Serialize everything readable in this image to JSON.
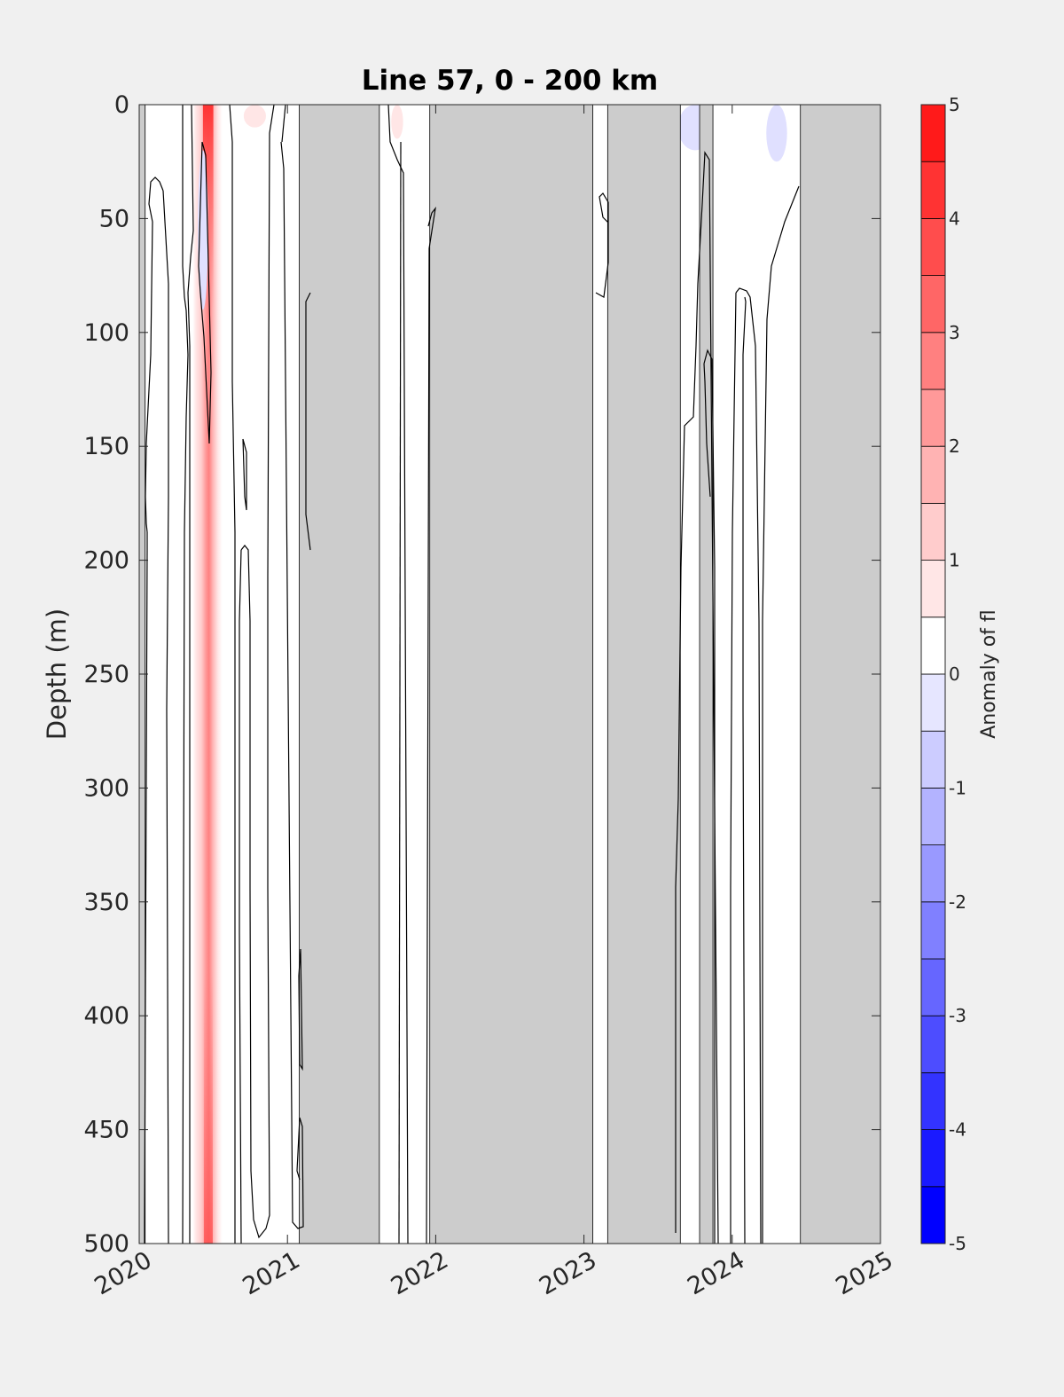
{
  "chart_data": {
    "type": "heatmap",
    "title": "Line 57, 0 - 200 km",
    "xlabel": "",
    "ylabel": "Depth (m)",
    "xlim": [
      2020,
      2025
    ],
    "ylim": [
      0,
      500
    ],
    "y_reversed": true,
    "x_ticks": [
      "2020",
      "2021",
      "2022",
      "2023",
      "2024",
      "2025"
    ],
    "y_ticks": [
      "0",
      "50",
      "100",
      "150",
      "200",
      "250",
      "300",
      "350",
      "400",
      "450",
      "500"
    ],
    "no_data_periods": [
      [
        2020.0,
        2020.04
      ],
      [
        2021.08,
        2021.62
      ],
      [
        2021.96,
        2023.06
      ],
      [
        2023.16,
        2023.65
      ],
      [
        2023.78,
        2023.87
      ],
      [
        2024.46,
        2025.0
      ]
    ],
    "no_data_color": "#cccccc",
    "anomaly_features": [
      {
        "x_start": 2020.36,
        "x_end": 2020.56,
        "depth_start": 0,
        "depth_end": 500,
        "peak_x": 2020.5,
        "peak_value": 4.0
      },
      {
        "x_start": 2020.7,
        "x_end": 2020.85,
        "depth_start": 0,
        "depth_end": 10,
        "peak_x": 2020.78,
        "peak_value": 0.5
      },
      {
        "x_start": 2021.7,
        "x_end": 2021.78,
        "depth_start": 0,
        "depth_end": 15,
        "peak_x": 2021.74,
        "peak_value": 0.5
      },
      {
        "x_start": 2024.23,
        "x_end": 2024.37,
        "depth_start": 0,
        "depth_end": 25,
        "peak_x": 2024.3,
        "peak_value": -0.7
      },
      {
        "x_start": 2023.65,
        "x_end": 2023.88,
        "depth_start": 0,
        "depth_end": 20,
        "peak_x": 2023.75,
        "peak_value": -0.6
      },
      {
        "x_start": 2020.39,
        "x_end": 2020.46,
        "depth_start": 20,
        "depth_end": 90,
        "peak_x": 2020.43,
        "peak_value": -0.6
      }
    ],
    "colorbar": {
      "label": "Anomaly of fl",
      "min": -5,
      "max": 5,
      "ticks": [
        "-5",
        "-4",
        "-3",
        "-2",
        "-1",
        "0",
        "1",
        "2",
        "3",
        "4",
        "5"
      ],
      "levels": [
        -5,
        -4.5,
        -4,
        -3.5,
        -3,
        -2.5,
        -2,
        -1.5,
        -1,
        -0.5,
        0,
        0.5,
        1,
        1.5,
        2,
        2.5,
        3,
        3.5,
        4,
        4.5,
        5
      ],
      "colors": [
        "#0000ff",
        "#1a1aff",
        "#3333ff",
        "#4d4dff",
        "#6666ff",
        "#8080ff",
        "#9999ff",
        "#b3b3ff",
        "#ccccff",
        "#e6e6ff",
        "#ffffff",
        "#ffffff",
        "#ffe6e6",
        "#ffcccc",
        "#ffb3b3",
        "#ff9999",
        "#ff8080",
        "#ff6666",
        "#ff4d4d",
        "#ff3333",
        "#ff1a1a",
        "#ff0000"
      ]
    },
    "colors": {
      "negative": "#0000ff",
      "positive": "#ff0000",
      "zero": "#ffffff",
      "background": "#f0f0f0",
      "axes_edge": "#262626"
    }
  }
}
